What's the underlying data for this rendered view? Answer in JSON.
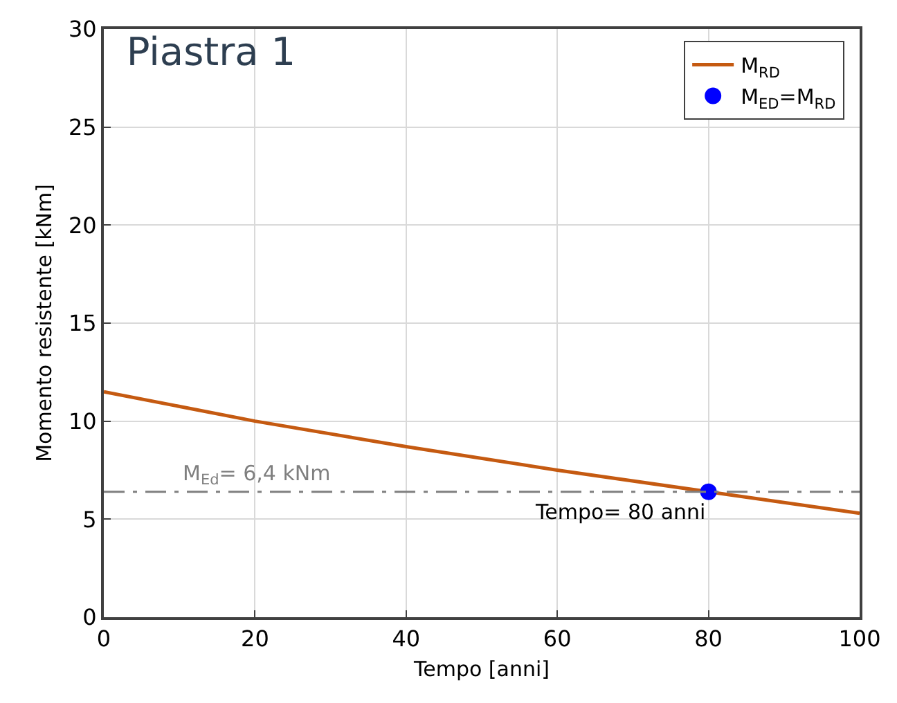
{
  "chart_data": {
    "type": "line",
    "title": "Piastra 1",
    "xlabel": "Tempo [anni]",
    "ylabel": "Momento resistente [kNm]",
    "x": [
      0,
      20,
      40,
      60,
      80,
      100
    ],
    "series": [
      {
        "name": "M$_{RD}$",
        "color": "#c55a11",
        "marker": "none",
        "values": [
          11.5,
          10.0,
          8.7,
          7.5,
          6.4,
          5.3
        ]
      },
      {
        "name": "M$_{ED}$=M$_{RD}$",
        "type": "scatter",
        "color": "#0000ff",
        "marker": "circle",
        "x": [
          80
        ],
        "values": [
          6.4
        ]
      }
    ],
    "ref_lines": [
      {
        "axis": "y",
        "value": 6.4,
        "label": "M$_{Ed}$= 6,4 kNm",
        "color": "#7f7f7f",
        "line_style": "dashed"
      }
    ],
    "annotations": [
      {
        "text": "Tempo= 80 anni",
        "x": 80,
        "y": 6.4
      }
    ],
    "xlim": [
      0,
      100
    ],
    "xticks": [
      0,
      20,
      40,
      60,
      80,
      100
    ],
    "ylim": [
      0,
      30
    ],
    "yticks": [
      0,
      5,
      10,
      15,
      20,
      25,
      30
    ],
    "grid": true,
    "legend": "top right"
  }
}
